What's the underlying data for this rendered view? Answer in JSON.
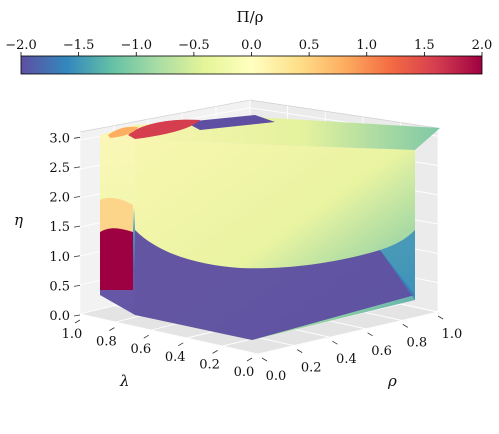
{
  "chart_data": {
    "type": "scatter",
    "projection": "3d",
    "axes": {
      "x": {
        "label": "λ",
        "ticks": [
          "0.0",
          "0.2",
          "0.4",
          "0.6",
          "0.8",
          "1.0"
        ],
        "range": [
          0,
          1
        ]
      },
      "y": {
        "label": "ρ",
        "ticks": [
          "0.0",
          "0.2",
          "0.4",
          "0.6",
          "0.8",
          "1.0"
        ],
        "range": [
          0,
          1
        ]
      },
      "z": {
        "label": "η",
        "ticks": [
          "0.0",
          "0.5",
          "1.0",
          "1.5",
          "2.0",
          "2.5",
          "3.0"
        ],
        "range": [
          0,
          3.14
        ]
      }
    },
    "colorbar": {
      "label": "Π/ρ",
      "range": [
        -2,
        2
      ],
      "ticks": [
        "−2.0",
        "−1.5",
        "−1.0",
        "−0.5",
        "0.0",
        "0.5",
        "1.0",
        "1.5",
        "2.0"
      ],
      "colormap": "Spectral_r",
      "placement": "top"
    },
    "regions": [
      {
        "where": "low η (bottom layer of both visible faces)",
        "value": -2.0
      },
      {
        "where": "λ-face, λ≈0.6–1.0, η≈0.5–1.5",
        "value": 2.0
      },
      {
        "where": "top face, far corner (λ≈1, ρ≈0)",
        "value": 2.0
      },
      {
        "where": "upper bulk of cube",
        "value": 0.5
      },
      {
        "where": "ρ-face high ρ, η≈0.5–1.5",
        "value": -1.0
      }
    ],
    "grid": true
  }
}
